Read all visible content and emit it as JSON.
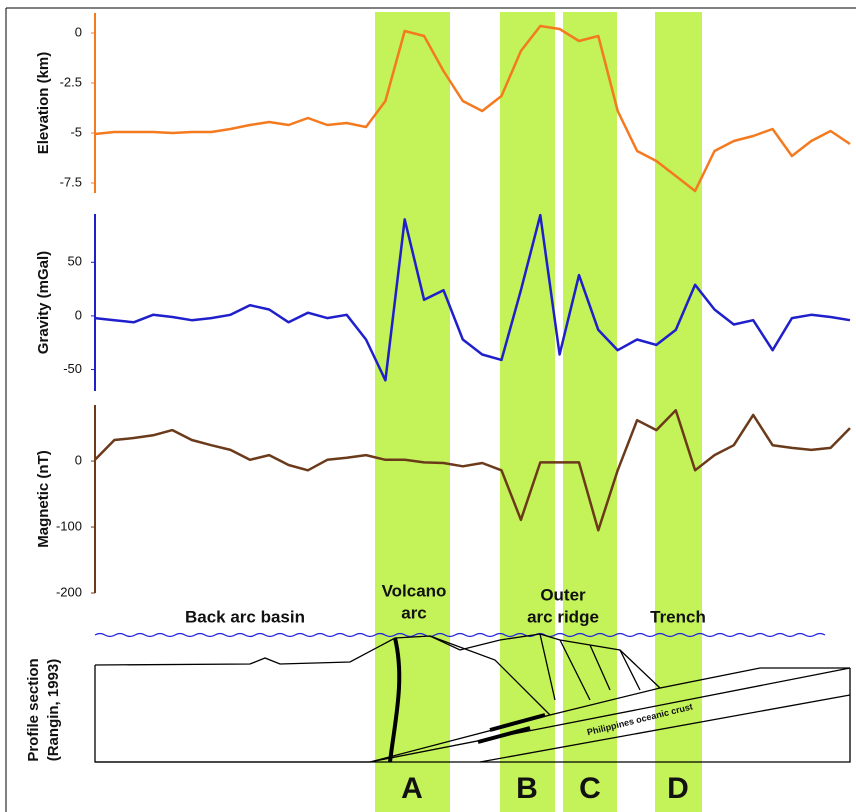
{
  "chart_data": [
    {
      "type": "line",
      "y_label": "Elevation (km)",
      "ylim": [
        -8,
        1
      ],
      "yticks": [
        0,
        -2.5,
        -5,
        -7.5
      ],
      "categories": [
        null,
        null,
        null,
        null,
        null,
        null,
        null,
        null,
        null,
        null,
        null,
        null,
        null,
        null,
        null,
        null,
        null,
        null,
        null,
        null,
        null,
        null,
        null,
        null,
        null,
        null,
        null,
        null,
        null,
        null,
        null,
        null,
        null,
        null,
        null,
        null,
        null,
        null,
        null,
        null
      ],
      "series": [
        {
          "color": "#f47a20",
          "values": [
            -5.05,
            -4.95,
            -4.95,
            -4.95,
            -5,
            -4.95,
            -4.95,
            -4.8,
            -4.6,
            -4.45,
            -4.6,
            -4.25,
            -4.6,
            -4.5,
            -4.7,
            -3.4,
            0.1,
            -0.15,
            -1.9,
            -3.4,
            -3.9,
            -3.15,
            -0.9,
            0.35,
            0.2,
            -0.4,
            -0.15,
            -3.9,
            -5.9,
            -6.4,
            -7.15,
            -7.9,
            -5.9,
            -5.4,
            -5.15,
            -4.8,
            -6.15,
            -5.4,
            -4.9,
            -5.55
          ]
        }
      ]
    },
    {
      "type": "line",
      "y_label": "Gravity (mGal)",
      "ylim": [
        -70,
        95
      ],
      "yticks": [
        50,
        0,
        -50
      ],
      "categories": [
        null,
        null,
        null,
        null,
        null,
        null,
        null,
        null,
        null,
        null,
        null,
        null,
        null,
        null,
        null,
        null,
        null,
        null,
        null,
        null,
        null,
        null,
        null,
        null,
        null,
        null,
        null,
        null,
        null,
        null,
        null,
        null,
        null,
        null,
        null,
        null,
        null,
        null,
        null,
        null
      ],
      "series": [
        {
          "color": "#1f1fcc",
          "values": [
            -2,
            -4,
            -6,
            1,
            -1,
            -4,
            -2,
            1,
            10,
            6,
            -6,
            3,
            -2,
            1,
            -22,
            -60,
            90,
            15,
            24,
            -22,
            -36,
            -41,
            24,
            94,
            -36,
            38,
            -13,
            -32,
            -22,
            -27,
            -13,
            29,
            6,
            -8,
            -4,
            -32,
            -2,
            1,
            -1,
            -4
          ]
        }
      ]
    },
    {
      "type": "line",
      "y_label": "Magnetic (nT)",
      "ylim": [
        -200,
        85
      ],
      "yticks": [
        0,
        -100,
        -200
      ],
      "categories": [
        null,
        null,
        null,
        null,
        null,
        null,
        null,
        null,
        null,
        null,
        null,
        null,
        null,
        null,
        null,
        null,
        null,
        null,
        null,
        null,
        null,
        null,
        null,
        null,
        null,
        null,
        null,
        null,
        null,
        null,
        null,
        null,
        null,
        null,
        null,
        null,
        null,
        null,
        null,
        null
      ],
      "series": [
        {
          "color": "#6b3a1a",
          "values": [
            2,
            32,
            35,
            39,
            47,
            32,
            24,
            17,
            2,
            9,
            -6,
            -14,
            2,
            5,
            9,
            2,
            2,
            -2,
            -3,
            -8,
            -3,
            -14,
            -89,
            -2,
            -2,
            -2,
            -105,
            -14,
            62,
            47,
            77,
            -14,
            9,
            24,
            70,
            24,
            20,
            17,
            20,
            50
          ]
        }
      ]
    }
  ],
  "profile": {
    "title": [
      "Profile section",
      "(Rangin, 1993)"
    ],
    "back_arc": "Back arc basin",
    "volcano_arc": [
      "Volcano",
      "arc"
    ],
    "outer_arc": [
      "Outer",
      "arc ridge"
    ],
    "trench": "Trench",
    "crust": "Philippines oceanic crust"
  },
  "bands": [
    "A",
    "B",
    "C",
    "D"
  ]
}
